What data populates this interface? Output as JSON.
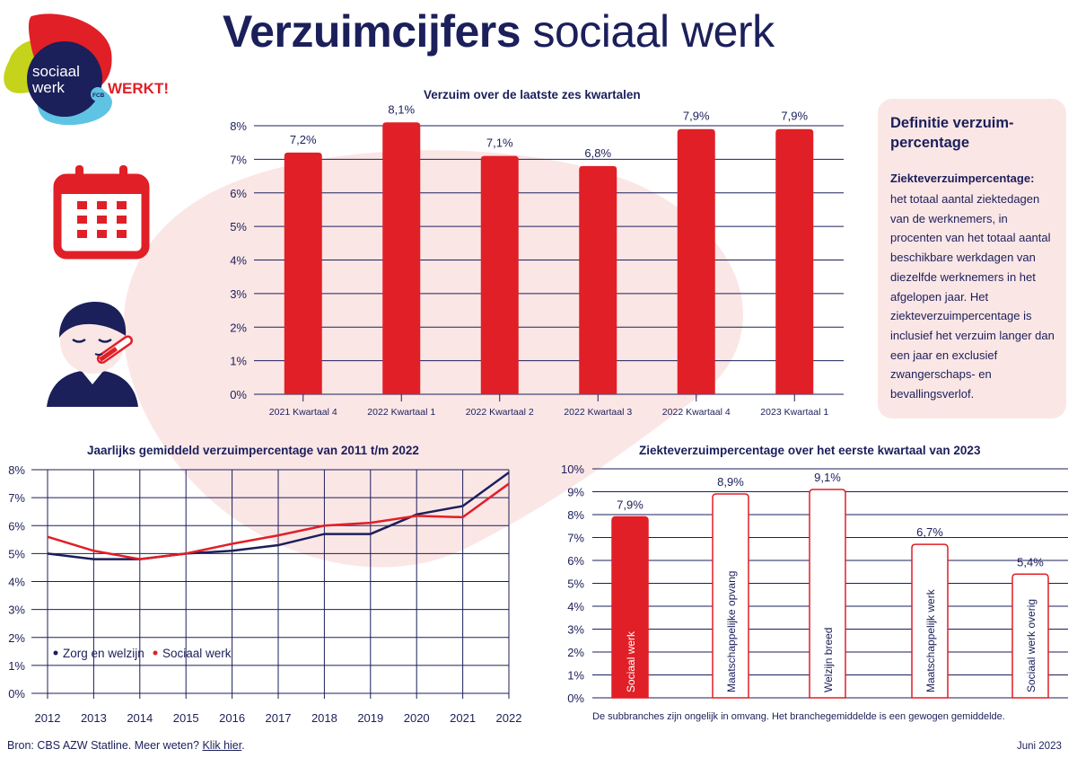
{
  "title_bold": "Verzuimcijfers",
  "title_light": "sociaal werk",
  "logo": {
    "line1": "sociaal",
    "line2": "werk",
    "tag": "WERKT!",
    "badge": "FCB"
  },
  "colors": {
    "navy": "#1b1f5a",
    "red": "#e11f26",
    "pink_bg": "#fbe6e6"
  },
  "icons": [
    "calendar-icon",
    "sick-person-icon"
  ],
  "definition": {
    "title": "Definitie verzuim-percentage",
    "term": "Ziekteverzuimpercentage:",
    "text": "het totaal aantal ziektedagen van de werknemers, in procenten van het totaal aantal beschikbare werkdagen van diezelfde werknemers in het afgelopen jaar. Het ziekteverzuimpercentage is inclusief het verzuim langer dan een jaar en exclusief zwangerschaps- en bevallingsverlof."
  },
  "footnote": "De subbranches zijn ongelijk in omvang. Het branchegemiddelde is een gewogen gemiddelde.",
  "source": {
    "text": "Bron: CBS AZW Statline. Meer weten?",
    "link": "Klik hier",
    "end": "."
  },
  "date": "Juni 2023",
  "chart_data": [
    {
      "type": "bar",
      "title": "Verzuim over de laatste zes kwartalen",
      "categories": [
        "2021  Kwartaal 4",
        "2022  Kwartaal 1",
        "2022  Kwartaal 2",
        "2022  Kwartaal 3",
        "2022  Kwartaal 4",
        "2023  Kwartaal 1"
      ],
      "values": [
        7.2,
        8.1,
        7.1,
        6.8,
        7.9,
        7.9
      ],
      "labels": [
        "7,2%",
        "8,1%",
        "7,1%",
        "6,8%",
        "7,9%",
        "7,9%"
      ],
      "yticks": [
        "0%",
        "1%",
        "2%",
        "3%",
        "4%",
        "5%",
        "6%",
        "7%",
        "8%"
      ],
      "ylim": [
        0,
        8
      ],
      "grid": true
    },
    {
      "type": "line",
      "title": "Jaarlijks gemiddeld verzuimpercentage van 2011 t/m 2022",
      "x": [
        "2012",
        "2013",
        "2014",
        "2015",
        "2016",
        "2017",
        "2018",
        "2019",
        "2020",
        "2021",
        "2022"
      ],
      "series": [
        {
          "name": "Zorg en welzijn",
          "color": "#1b1f5a",
          "values": [
            5.0,
            4.8,
            4.8,
            5.0,
            5.1,
            5.3,
            5.7,
            5.7,
            6.4,
            6.7,
            7.9
          ]
        },
        {
          "name": "Sociaal werk",
          "color": "#e11f26",
          "values": [
            5.6,
            5.1,
            4.8,
            5.0,
            5.35,
            5.65,
            6.0,
            6.1,
            6.35,
            6.3,
            7.5
          ]
        }
      ],
      "yticks": [
        "0%",
        "1%",
        "2%",
        "3%",
        "4%",
        "5%",
        "6%",
        "7%",
        "8%"
      ],
      "ylim": [
        0,
        8
      ],
      "legend": "bottom-left",
      "grid": true
    },
    {
      "type": "bar",
      "title": "Ziekteverzuimpercentage over het eerste kwartaal van 2023",
      "categories": [
        "Sociaal werk",
        "Maatschappelijke opvang",
        "Welzijn breed",
        "Maatschappelijk werk",
        "Sociaal werk overig"
      ],
      "values": [
        7.9,
        8.9,
        9.1,
        6.7,
        5.4
      ],
      "labels": [
        "7,9%",
        "8,9%",
        "9,1%",
        "6,7%",
        "5,4%"
      ],
      "highlight": [
        true,
        false,
        false,
        false,
        false
      ],
      "yticks": [
        "0%",
        "1%",
        "2%",
        "3%",
        "4%",
        "5%",
        "6%",
        "7%",
        "8%",
        "9%",
        "10%"
      ],
      "ylim": [
        0,
        10
      ],
      "grid": true
    }
  ]
}
